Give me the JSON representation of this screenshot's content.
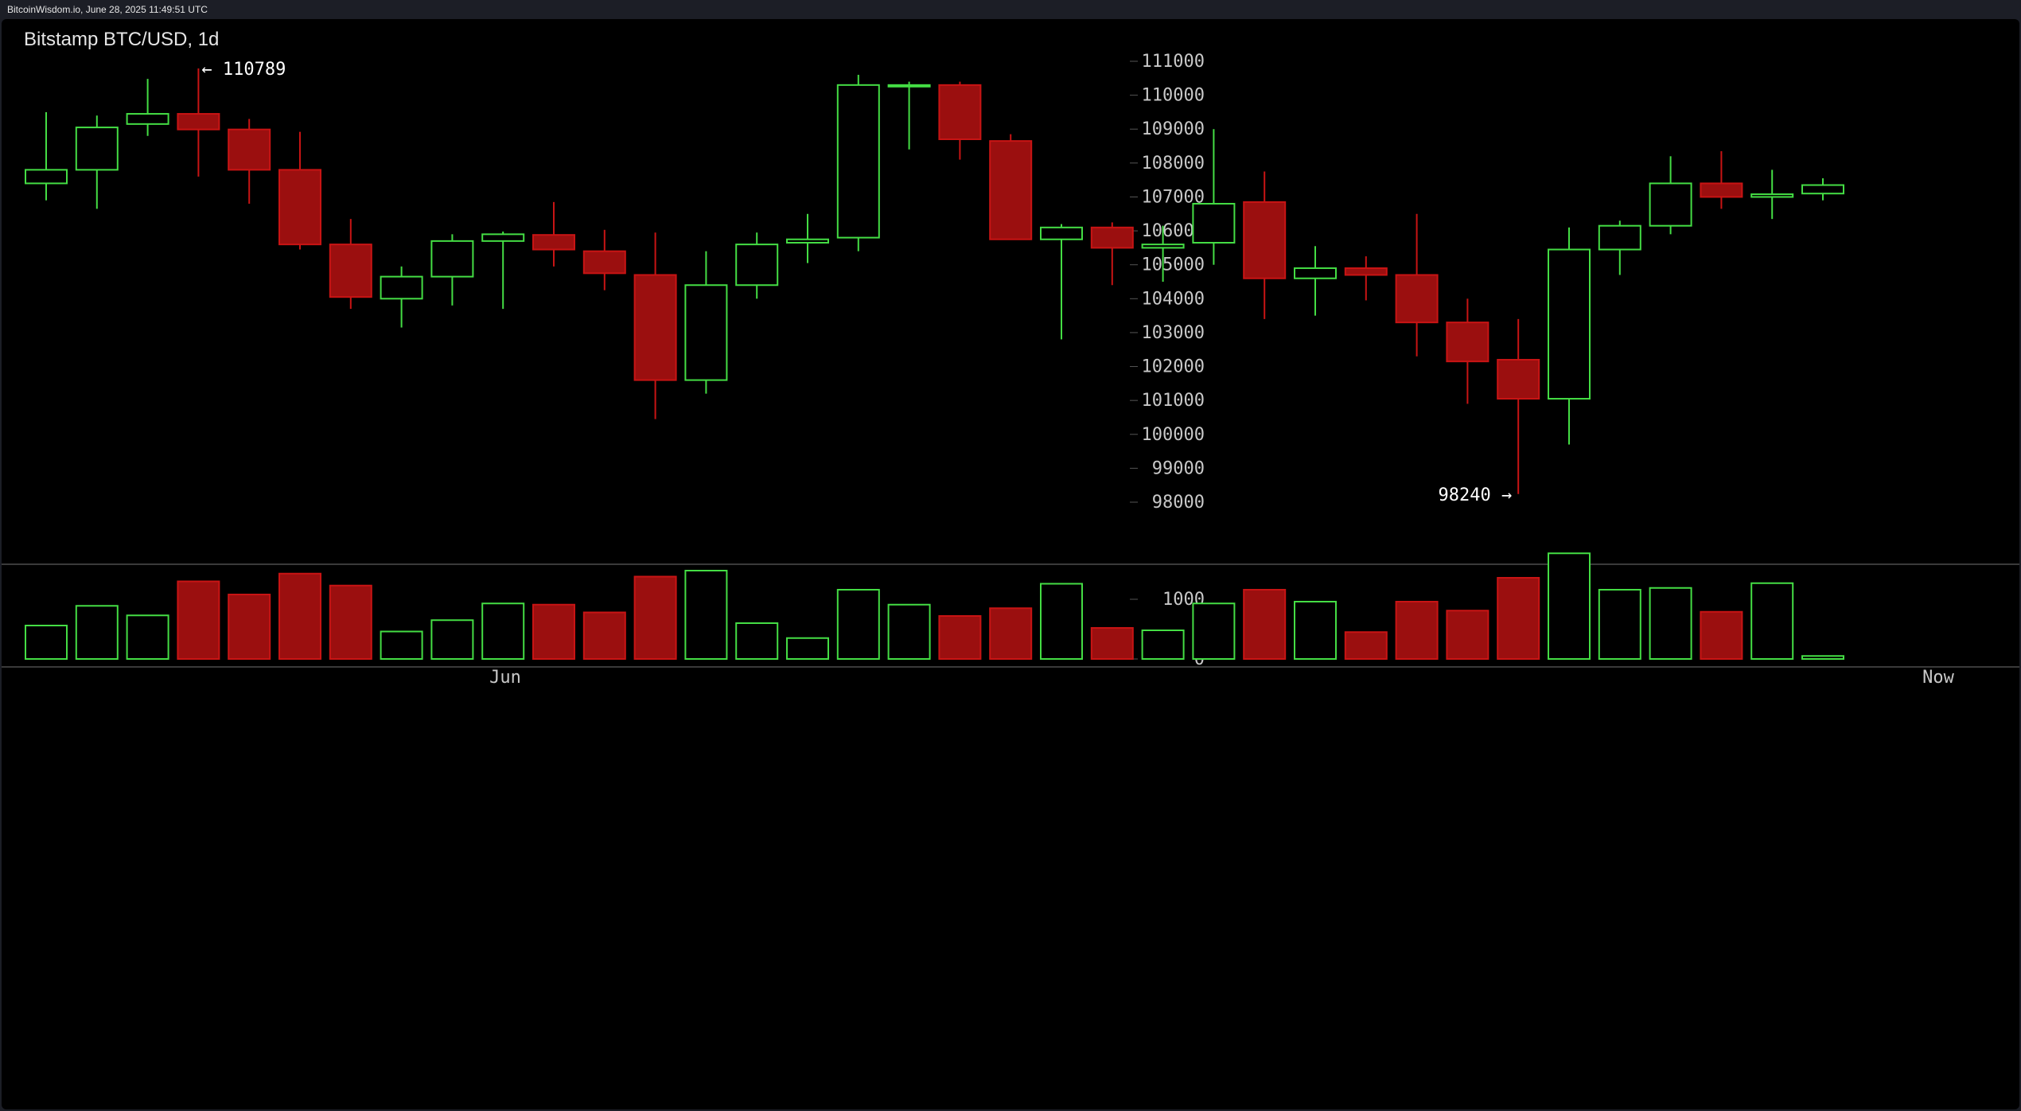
{
  "header": {
    "source_text": "BitcoinWisdom.io, June 28, 2025 11:49:51 UTC"
  },
  "colors": {
    "up": "#44dd44",
    "down": "#c81414",
    "down_fill": "#9b0f0f",
    "axis_text": "#c8c8c8",
    "annotation_text": "#ffffff",
    "separator": "#3a3a3a"
  },
  "chart_data": {
    "type": "candlestick",
    "title": "Bitstamp BTC/USD, 1d",
    "x_tick_labels": [
      "Jun",
      "Now"
    ],
    "price_axis": {
      "ticks": [
        111000,
        110000,
        109000,
        108000,
        107000,
        106000,
        105000,
        104000,
        103000,
        102000,
        101000,
        100000,
        99000,
        98000
      ],
      "range": [
        97000,
        111800
      ]
    },
    "volume_axis": {
      "ticks": [
        1000,
        0
      ],
      "range": [
        0,
        1760
      ]
    },
    "annotations": {
      "high_label": "← 110789",
      "low_label": "98240 →"
    },
    "candles": [
      {
        "o": 107400,
        "h": 109500,
        "l": 106900,
        "c": 107800,
        "v": 560
      },
      {
        "o": 107800,
        "h": 109400,
        "l": 106650,
        "c": 109050,
        "v": 890
      },
      {
        "o": 109150,
        "h": 110480,
        "l": 108800,
        "c": 109450,
        "v": 730
      },
      {
        "o": 109450,
        "h": 110789,
        "l": 107600,
        "c": 108990,
        "v": 1300
      },
      {
        "o": 108990,
        "h": 109300,
        "l": 106800,
        "c": 107800,
        "v": 1080
      },
      {
        "o": 107800,
        "h": 108920,
        "l": 105450,
        "c": 105600,
        "v": 1430
      },
      {
        "o": 105600,
        "h": 106350,
        "l": 103700,
        "c": 104050,
        "v": 1230
      },
      {
        "o": 104000,
        "h": 104950,
        "l": 103150,
        "c": 104650,
        "v": 460
      },
      {
        "o": 104650,
        "h": 105900,
        "l": 103800,
        "c": 105700,
        "v": 650
      },
      {
        "o": 105700,
        "h": 105980,
        "l": 103700,
        "c": 105900,
        "v": 930
      },
      {
        "o": 105880,
        "h": 106850,
        "l": 104950,
        "c": 105450,
        "v": 910
      },
      {
        "o": 105400,
        "h": 106030,
        "l": 104250,
        "c": 104750,
        "v": 780
      },
      {
        "o": 104700,
        "h": 105950,
        "l": 100450,
        "c": 101600,
        "v": 1380
      },
      {
        "o": 101600,
        "h": 105400,
        "l": 101200,
        "c": 104400,
        "v": 1480
      },
      {
        "o": 104400,
        "h": 105950,
        "l": 104000,
        "c": 105600,
        "v": 600
      },
      {
        "o": 105650,
        "h": 106500,
        "l": 105050,
        "c": 105750,
        "v": 350
      },
      {
        "o": 105800,
        "h": 110600,
        "l": 105400,
        "c": 110300,
        "v": 1160
      },
      {
        "o": 110300,
        "h": 110400,
        "l": 108400,
        "c": 110300,
        "v": 910
      },
      {
        "o": 110300,
        "h": 110400,
        "l": 108100,
        "c": 108700,
        "v": 720
      },
      {
        "o": 108650,
        "h": 108850,
        "l": 105750,
        "c": 105750,
        "v": 850
      },
      {
        "o": 105750,
        "h": 106200,
        "l": 102800,
        "c": 106100,
        "v": 1260
      },
      {
        "o": 106100,
        "h": 106250,
        "l": 104400,
        "c": 105500,
        "v": 520
      },
      {
        "o": 105500,
        "h": 106150,
        "l": 104500,
        "c": 105600,
        "v": 480
      },
      {
        "o": 105650,
        "h": 109000,
        "l": 105000,
        "c": 106800,
        "v": 930
      },
      {
        "o": 106850,
        "h": 107750,
        "l": 103400,
        "c": 104600,
        "v": 1160
      },
      {
        "o": 104600,
        "h": 105550,
        "l": 103500,
        "c": 104900,
        "v": 960
      },
      {
        "o": 104900,
        "h": 105250,
        "l": 103950,
        "c": 104700,
        "v": 450
      },
      {
        "o": 104700,
        "h": 106500,
        "l": 102300,
        "c": 103300,
        "v": 960
      },
      {
        "o": 103300,
        "h": 104000,
        "l": 100900,
        "c": 102150,
        "v": 810
      },
      {
        "o": 102200,
        "h": 103400,
        "l": 98240,
        "c": 101050,
        "v": 1360
      },
      {
        "o": 101050,
        "h": 106100,
        "l": 99700,
        "c": 105450,
        "v": 1770
      },
      {
        "o": 105450,
        "h": 106300,
        "l": 104700,
        "c": 106150,
        "v": 1160
      },
      {
        "o": 106150,
        "h": 108200,
        "l": 105900,
        "c": 107400,
        "v": 1190
      },
      {
        "o": 107400,
        "h": 108350,
        "l": 106650,
        "c": 107000,
        "v": 790
      },
      {
        "o": 107000,
        "h": 107800,
        "l": 106350,
        "c": 107080,
        "v": 1270
      },
      {
        "o": 107100,
        "h": 107550,
        "l": 106900,
        "c": 107350,
        "v": 50
      }
    ]
  }
}
